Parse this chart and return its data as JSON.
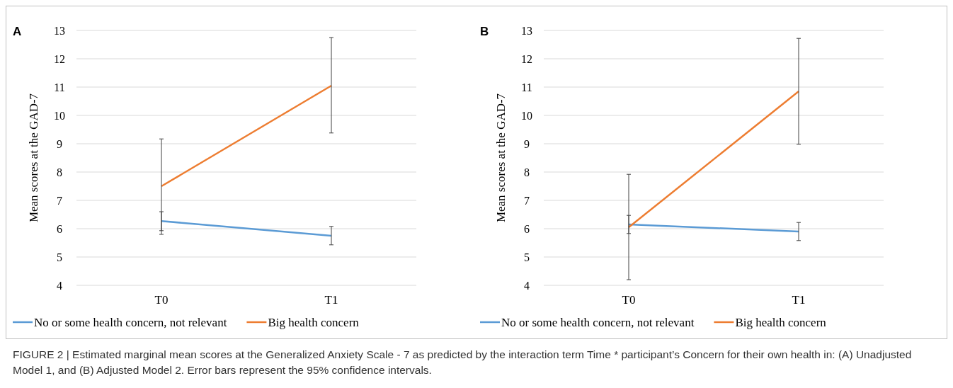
{
  "chart_data": [
    {
      "type": "line",
      "title": "A",
      "ylabel": "Mean scores at the GAD-7",
      "categories": [
        "T0",
        "T1"
      ],
      "ylim": [
        4,
        13
      ],
      "yticks": [
        4,
        5,
        6,
        7,
        8,
        9,
        10,
        11,
        12,
        13
      ],
      "grid": "y",
      "legend": "bottom",
      "marker": "none",
      "series": [
        {
          "name": "No or some health concern, not relevant",
          "color": "#5b9bd5",
          "values": [
            6.27,
            5.75
          ],
          "errors": [
            [
              5.8,
              6.6
            ],
            [
              5.43,
              6.08
            ]
          ]
        },
        {
          "name": "Big health concern",
          "color": "#ed7d31",
          "values": [
            7.5,
            11.05
          ],
          "errors": [
            [
              5.93,
              9.17
            ],
            [
              9.38,
              12.75
            ]
          ]
        }
      ],
      "annotations": [
        "FIGURE 2 | Estimated marginal mean scores at the Generalized Anxiety Scale - 7 as predicted by the interaction term Time * participant’s Concern for their own health in: (A) Unadjusted Model 1, and (B) Adjusted Model 2. Error bars represent the 95% confidence intervals."
      ]
    },
    {
      "type": "line",
      "title": "B",
      "ylabel": "Mean scores at the GAD-7",
      "categories": [
        "T0",
        "T1"
      ],
      "ylim": [
        4,
        13
      ],
      "yticks": [
        4,
        5,
        6,
        7,
        8,
        9,
        10,
        11,
        12,
        13
      ],
      "grid": "y",
      "legend": "bottom",
      "marker": "none",
      "series": [
        {
          "name": "No or some health concern, not relevant",
          "color": "#5b9bd5",
          "values": [
            6.15,
            5.9
          ],
          "errors": [
            [
              5.83,
              6.47
            ],
            [
              5.58,
              6.22
            ]
          ]
        },
        {
          "name": "Big health concern",
          "color": "#ed7d31",
          "values": [
            6.05,
            10.85
          ],
          "errors": [
            [
              4.2,
              7.92
            ],
            [
              8.98,
              12.72
            ]
          ]
        }
      ]
    }
  ]
}
